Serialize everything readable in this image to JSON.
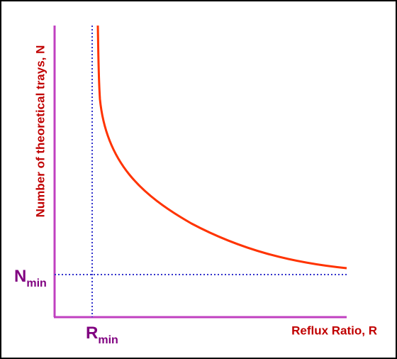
{
  "axes": {
    "y_label": "Number of theoretical trays, N",
    "x_label": "Reflux Ratio, R"
  },
  "markers": {
    "n_min": {
      "symbol": "N",
      "subscript": "min"
    },
    "r_min": {
      "symbol": "R",
      "subscript": "min"
    }
  }
}
